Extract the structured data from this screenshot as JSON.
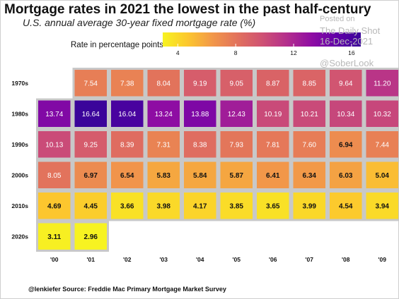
{
  "title": "Mortgage rates in 2021 the lowest in the past half-century",
  "subtitle": "U.S. annual average 30-year fixed mortgage rate (%)",
  "legend_label": "Rate in percentage points",
  "source": "@lenkiefer Source: Freddie Mac Primary Mortgage Market Survey",
  "watermark": {
    "line1": "Posted on",
    "line2": "The Daily Shot",
    "line3": "16-Dec-2021",
    "line4": "@SoberLook"
  },
  "colors": {
    "grid_background": "#c8c8c8",
    "scale": [
      "#f7f321",
      "#fcc72e",
      "#f29849",
      "#e2725c",
      "#cf5273",
      "#b42f8c",
      "#8f0da3",
      "#6200a8",
      "#3b049a"
    ]
  },
  "chart_data": {
    "type": "heatmap",
    "rows": [
      "1970s",
      "1980s",
      "1990s",
      "2000s",
      "2010s",
      "2020s"
    ],
    "columns": [
      "'00",
      "'01",
      "'02",
      "'03",
      "'04",
      "'05",
      "'06",
      "'07",
      "'08",
      "'09"
    ],
    "values": [
      [
        null,
        7.54,
        7.38,
        8.04,
        9.19,
        9.05,
        8.87,
        8.85,
        9.64,
        11.2
      ],
      [
        13.74,
        16.64,
        16.04,
        13.24,
        13.88,
        12.43,
        10.19,
        10.21,
        10.34,
        10.32
      ],
      [
        10.13,
        9.25,
        8.39,
        7.31,
        8.38,
        7.93,
        7.81,
        7.6,
        6.94,
        7.44
      ],
      [
        8.05,
        6.97,
        6.54,
        5.83,
        5.84,
        5.87,
        6.41,
        6.34,
        6.03,
        5.04
      ],
      [
        4.69,
        4.45,
        3.66,
        3.98,
        4.17,
        3.85,
        3.65,
        3.99,
        4.54,
        3.94
      ],
      [
        3.11,
        2.96,
        null,
        null,
        null,
        null,
        null,
        null,
        null,
        null
      ]
    ],
    "labels": [
      [
        null,
        "7.54",
        "7.38",
        "8.04",
        "9.19",
        "9.05",
        "8.87",
        "8.85",
        "9.64",
        "11.20"
      ],
      [
        "13.74",
        "16.64",
        "16.04",
        "13.24",
        "13.88",
        "12.43",
        "10.19",
        "10.21",
        "10.34",
        "10.32"
      ],
      [
        "10.13",
        "9.25",
        "8.39",
        "7.31",
        "8.38",
        "7.93",
        "7.81",
        "7.60",
        "6.94",
        "7.44"
      ],
      [
        "8.05",
        "6.97",
        "6.54",
        "5.83",
        "5.84",
        "5.87",
        "6.41",
        "6.34",
        "6.03",
        "5.04"
      ],
      [
        "4.69",
        "4.45",
        "3.66",
        "3.98",
        "4.17",
        "3.85",
        "3.65",
        "3.99",
        "4.54",
        "3.94"
      ],
      [
        "3.11",
        "2.96",
        null,
        null,
        null,
        null,
        null,
        null,
        null,
        null
      ]
    ],
    "legend": {
      "min": 2.96,
      "max": 16.64,
      "ticks": [
        4,
        8,
        12,
        16
      ],
      "position": "top"
    }
  }
}
